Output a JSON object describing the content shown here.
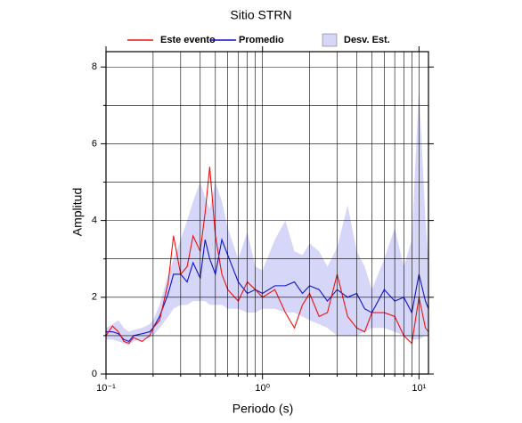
{
  "chart_data": {
    "type": "line",
    "title": "Sitio STRN",
    "xlabel": "Periodo (s)",
    "ylabel": "Amplitud",
    "xscale": "log",
    "grid": true,
    "xlim": [
      0.1,
      11.5
    ],
    "ylim": [
      0,
      8.4
    ],
    "xticks": [
      {
        "value": 0.1,
        "label": "10⁻¹"
      },
      {
        "value": 1,
        "label": "10⁰"
      },
      {
        "value": 10,
        "label": "10¹"
      }
    ],
    "xminor": [
      0.2,
      0.3,
      0.4,
      0.5,
      0.6,
      0.7,
      0.8,
      0.9,
      2,
      3,
      4,
      5,
      6,
      7,
      8,
      9
    ],
    "yticks": [
      0,
      2,
      4,
      6,
      8
    ],
    "yminor": [
      1,
      3,
      5,
      7
    ],
    "x": [
      0.1,
      0.11,
      0.12,
      0.13,
      0.14,
      0.15,
      0.17,
      0.19,
      0.2,
      0.22,
      0.25,
      0.27,
      0.3,
      0.33,
      0.36,
      0.4,
      0.43,
      0.46,
      0.5,
      0.55,
      0.6,
      0.7,
      0.8,
      0.9,
      1.0,
      1.2,
      1.4,
      1.6,
      1.8,
      2.0,
      2.3,
      2.6,
      3.0,
      3.5,
      4,
      4.5,
      5,
      6,
      7,
      8,
      9,
      10,
      11,
      11.5
    ],
    "series": [
      {
        "name": "Este evento",
        "color": "#ee1111",
        "values": [
          1.0,
          1.25,
          1.1,
          0.85,
          0.8,
          0.95,
          0.85,
          1.0,
          1.2,
          1.4,
          2.4,
          3.6,
          2.6,
          2.8,
          3.6,
          3.2,
          4.2,
          5.4,
          3.6,
          2.6,
          2.2,
          1.9,
          2.4,
          2.2,
          2.0,
          2.2,
          1.6,
          1.2,
          1.8,
          2.1,
          1.5,
          1.6,
          2.6,
          1.5,
          1.2,
          1.1,
          1.6,
          1.6,
          1.5,
          1.0,
          0.8,
          2.0,
          1.2,
          1.1
        ]
      },
      {
        "name": "Promedio",
        "color": "#1111cc",
        "values": [
          1.1,
          1.1,
          1.05,
          0.9,
          0.85,
          1.0,
          1.05,
          1.1,
          1.2,
          1.5,
          2.1,
          2.6,
          2.6,
          2.4,
          2.9,
          2.5,
          3.5,
          3.0,
          2.6,
          3.5,
          3.1,
          2.4,
          2.1,
          2.2,
          2.1,
          2.3,
          2.3,
          2.4,
          2.1,
          2.3,
          2.2,
          1.9,
          2.2,
          2.0,
          2.1,
          1.7,
          1.6,
          2.2,
          1.9,
          2.0,
          1.6,
          2.6,
          1.9,
          1.7
        ]
      }
    ],
    "band": {
      "name": "Desv. Est.",
      "color": "#d6d6f8",
      "lower": [
        0.9,
        0.9,
        0.85,
        0.8,
        0.75,
        0.85,
        0.9,
        0.95,
        1.0,
        1.2,
        1.5,
        1.7,
        1.8,
        1.8,
        1.9,
        1.9,
        1.9,
        1.8,
        1.8,
        1.8,
        1.7,
        1.7,
        1.6,
        1.6,
        1.7,
        1.7,
        1.6,
        1.6,
        1.5,
        1.4,
        1.3,
        1.2,
        1.0,
        1.0,
        1.0,
        1.1,
        1.2,
        1.2,
        1.1,
        1.0,
        0.9,
        0.9,
        1.0,
        1.0
      ],
      "upper": [
        1.2,
        1.3,
        1.4,
        1.2,
        1.1,
        1.15,
        1.2,
        1.3,
        1.4,
        1.8,
        2.6,
        3.0,
        3.5,
        4.0,
        4.5,
        5.0,
        4.6,
        4.3,
        5.0,
        4.5,
        3.8,
        3.0,
        3.7,
        2.8,
        2.7,
        3.5,
        4.0,
        3.2,
        3.1,
        3.4,
        3.2,
        2.8,
        3.3,
        4.4,
        3.2,
        2.8,
        2.2,
        3.0,
        3.8,
        2.8,
        3.5,
        7.5,
        4.0,
        3.0
      ]
    }
  }
}
